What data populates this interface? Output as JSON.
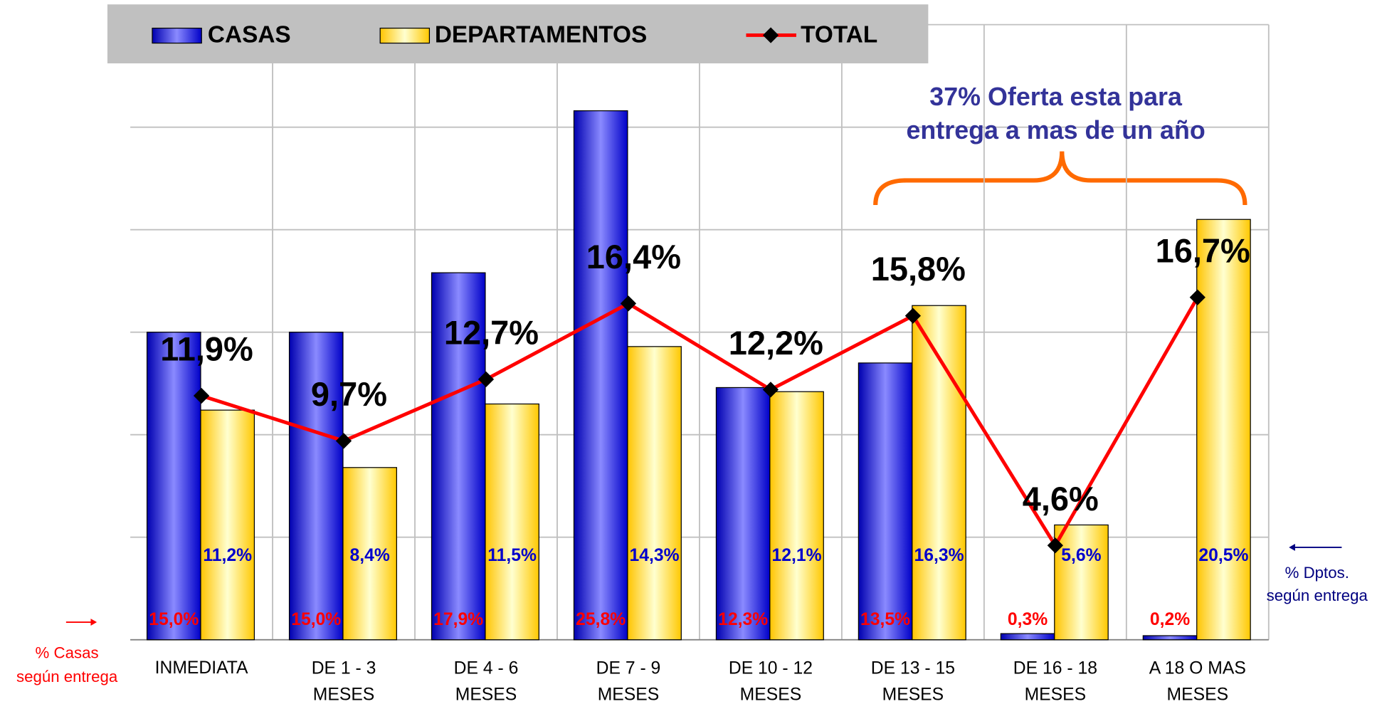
{
  "chart_data": {
    "type": "bar_line",
    "categories": [
      "INMEDIATA",
      "DE 1 - 3 MESES",
      "DE 4 - 6 MESES",
      "DE 7 - 9 MESES",
      "DE 10 - 12 MESES",
      "DE 13 - 15 MESES",
      "DE 16 - 18 MESES",
      "A 18 O MAS MESES"
    ],
    "series": [
      {
        "name": "CASAS",
        "color": "#1a1aee",
        "values": [
          15.0,
          15.0,
          17.9,
          25.8,
          12.3,
          13.5,
          0.3,
          0.2
        ],
        "value_labels": [
          "15,0%",
          "15,0%",
          "17,9%",
          "25,8%",
          "12,3%",
          "13,5%",
          "0,3%",
          "0,2%"
        ]
      },
      {
        "name": "DEPARTAMENTOS",
        "color": "#ffcc00",
        "values": [
          11.2,
          8.4,
          11.5,
          14.3,
          12.1,
          16.3,
          5.6,
          20.5
        ],
        "value_labels": [
          "11,2%",
          "8,4%",
          "11,5%",
          "14,3%",
          "12,1%",
          "16,3%",
          "5,6%",
          "20,5%"
        ]
      },
      {
        "name": "TOTAL",
        "color": "#ff0000",
        "values": [
          11.9,
          9.7,
          12.7,
          16.4,
          12.2,
          15.8,
          4.6,
          16.7
        ],
        "value_labels": [
          "11,9%",
          "9,7%",
          "12,7%",
          "16,4%",
          "12,2%",
          "15,8%",
          "4,6%",
          "16,7%"
        ]
      }
    ],
    "ylim": [
      0,
      30
    ],
    "yticks": [
      0,
      5,
      10,
      15,
      20,
      25,
      30
    ],
    "grid": true,
    "annotations": {
      "brace_text": [
        "37% Oferta esta para",
        "entrega a mas de un año"
      ],
      "casas_note": [
        "% Casas",
        "según entrega"
      ],
      "dptos_note": [
        "% Dptos.",
        "según entrega"
      ]
    }
  }
}
